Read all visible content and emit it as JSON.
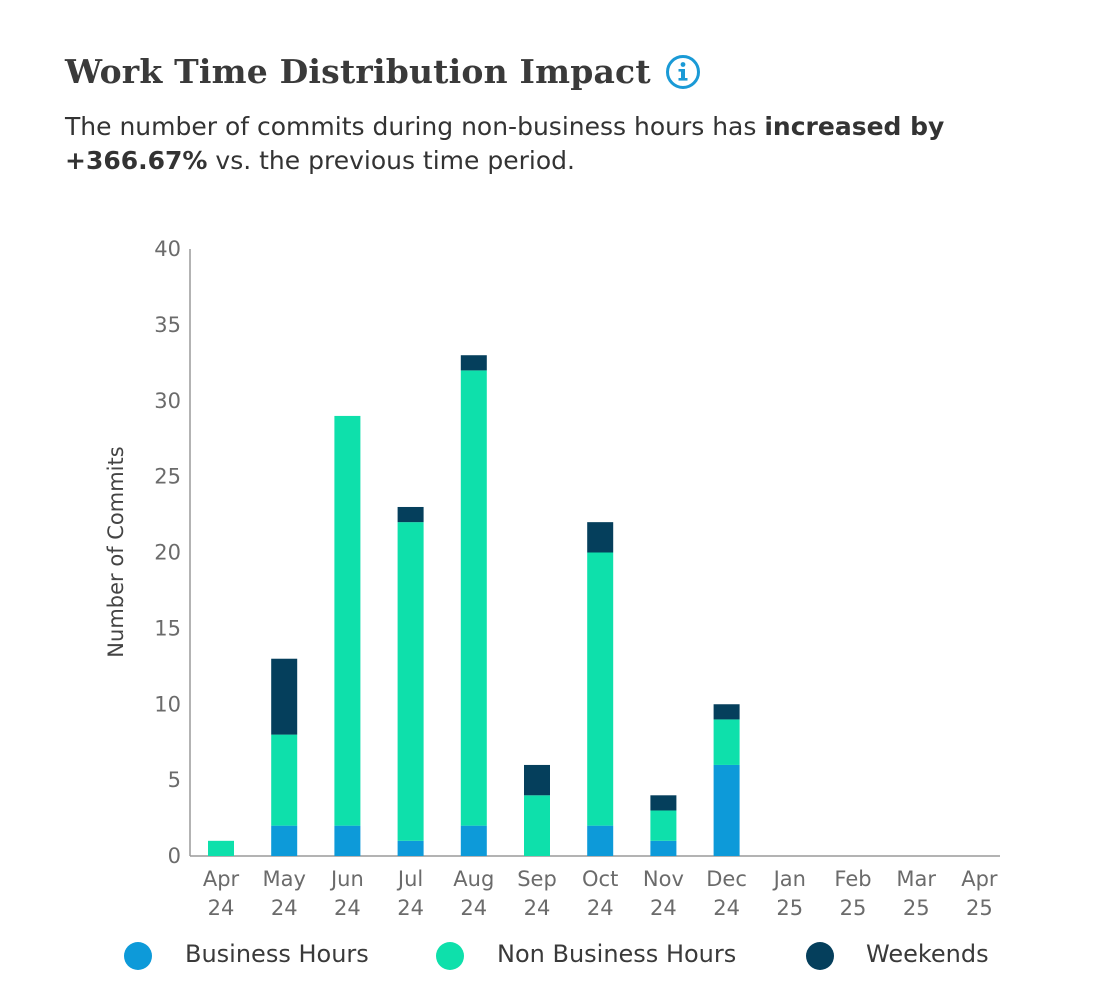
{
  "header": {
    "title": "Work Time Distribution Impact",
    "info_icon": "info-icon",
    "summary_prefix": "The number of commits during non-business hours has ",
    "summary_bold_1": "increased by",
    "summary_bold_2": "+366.67%",
    "summary_suffix": " vs. the previous time period."
  },
  "colors": {
    "business": "#0d9ad9",
    "non_business": "#0ee0ab",
    "weekends": "#053f5c",
    "axis": "#9a9a9a",
    "info": "#1a9ad6"
  },
  "chart_data": {
    "type": "bar",
    "stacked": true,
    "categories": [
      "Apr 24",
      "May 24",
      "Jun 24",
      "Jul 24",
      "Aug 24",
      "Sep 24",
      "Oct 24",
      "Nov 24",
      "Dec 24",
      "Jan 25",
      "Feb 25",
      "Mar 25",
      "Apr 25"
    ],
    "series": [
      {
        "name": "Business Hours",
        "values": [
          0,
          2,
          2,
          1,
          2,
          0,
          2,
          1,
          6,
          0,
          0,
          0,
          0
        ]
      },
      {
        "name": "Non Business Hours",
        "values": [
          1,
          6,
          27,
          21,
          30,
          4,
          18,
          2,
          3,
          0,
          0,
          0,
          0
        ]
      },
      {
        "name": "Weekends",
        "values": [
          0,
          5,
          0,
          1,
          1,
          2,
          2,
          1,
          1,
          0,
          0,
          0,
          0
        ]
      }
    ],
    "title": "Work Time Distribution Impact",
    "xlabel": "",
    "ylabel": "Number of Commits",
    "ylim": [
      0,
      40
    ],
    "yticks": [
      0,
      5,
      10,
      15,
      20,
      25,
      30,
      35,
      40
    ],
    "grid": false,
    "legend_position": "bottom"
  }
}
